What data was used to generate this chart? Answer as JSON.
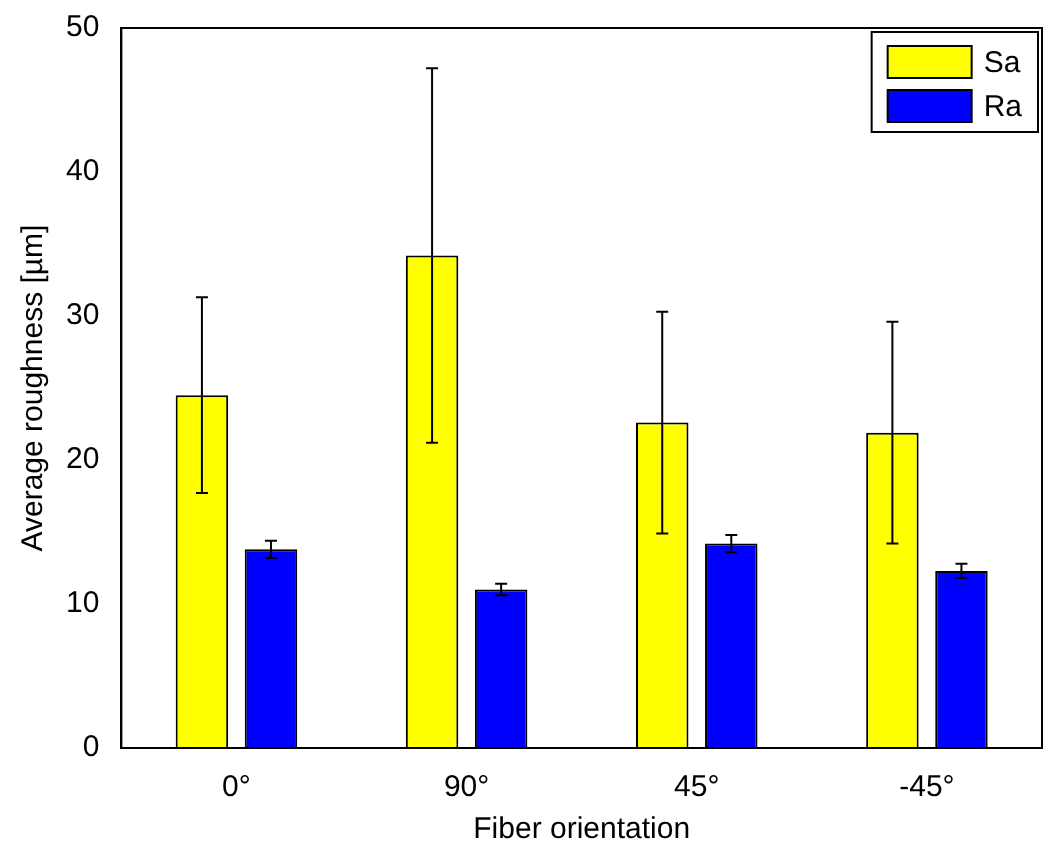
{
  "chart_data": {
    "type": "bar",
    "xlabel": "Fiber orientation",
    "ylabel": "Average roughness [µm]",
    "categories": [
      "0°",
      "90°",
      "45°",
      "-45°"
    ],
    "series": [
      {
        "name": "Sa",
        "color": "#ffff00",
        "values": [
          24.5,
          34.2,
          22.6,
          21.9
        ],
        "errors": [
          6.8,
          13.0,
          7.7,
          7.7
        ]
      },
      {
        "name": "Ra",
        "color": "#0000ff",
        "values": [
          13.8,
          11.0,
          14.2,
          12.3
        ],
        "errors": [
          0.6,
          0.4,
          0.6,
          0.5
        ]
      }
    ],
    "ylim": [
      0,
      50
    ],
    "yticks": [
      0,
      10,
      20,
      30,
      40,
      50
    ],
    "legend": "top right"
  }
}
